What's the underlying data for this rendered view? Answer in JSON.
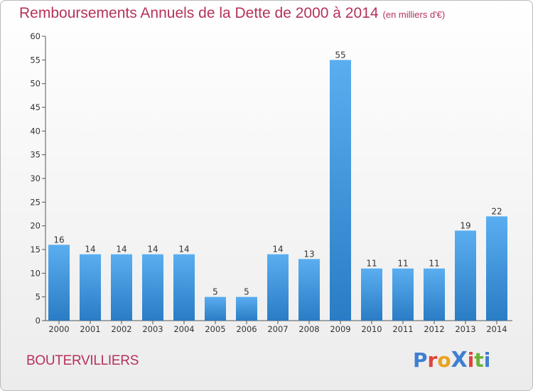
{
  "title": "Remboursements Annuels de la Dette de 2000 à 2014",
  "subtitle": "(en milliers d'€)",
  "commune": "BOUTERVILLIERS",
  "logo": {
    "text": "ProXiti",
    "letters": [
      "P",
      "r",
      "o",
      "X",
      "i",
      "t",
      "i"
    ],
    "colors": [
      "#3f7fd1",
      "#e0433e",
      "#e8a21d",
      "#3f7fd1",
      "#e0433e",
      "#6bb33a",
      "#3f7fd1"
    ]
  },
  "colors": {
    "bar_top": "#5aaef0",
    "bar_bottom": "#2a7cc4",
    "title": "#b5325a",
    "axis": "#555555"
  },
  "chart_data": {
    "type": "bar",
    "categories": [
      "2000",
      "2001",
      "2002",
      "2003",
      "2004",
      "2005",
      "2006",
      "2007",
      "2008",
      "2009",
      "2010",
      "2011",
      "2012",
      "2013",
      "2014"
    ],
    "values": [
      16,
      14,
      14,
      14,
      14,
      5,
      5,
      14,
      13,
      55,
      11,
      11,
      11,
      19,
      22
    ],
    "data_labels": [
      "16",
      "14",
      "14",
      "14",
      "14",
      "5",
      "5",
      "14",
      "13",
      "55",
      "11",
      "11",
      "11",
      "19",
      "22"
    ],
    "ylim": [
      0,
      60
    ],
    "yticks": [
      0,
      5,
      10,
      15,
      20,
      25,
      30,
      35,
      40,
      45,
      50,
      55,
      60
    ],
    "grid": false,
    "legend": "none"
  }
}
